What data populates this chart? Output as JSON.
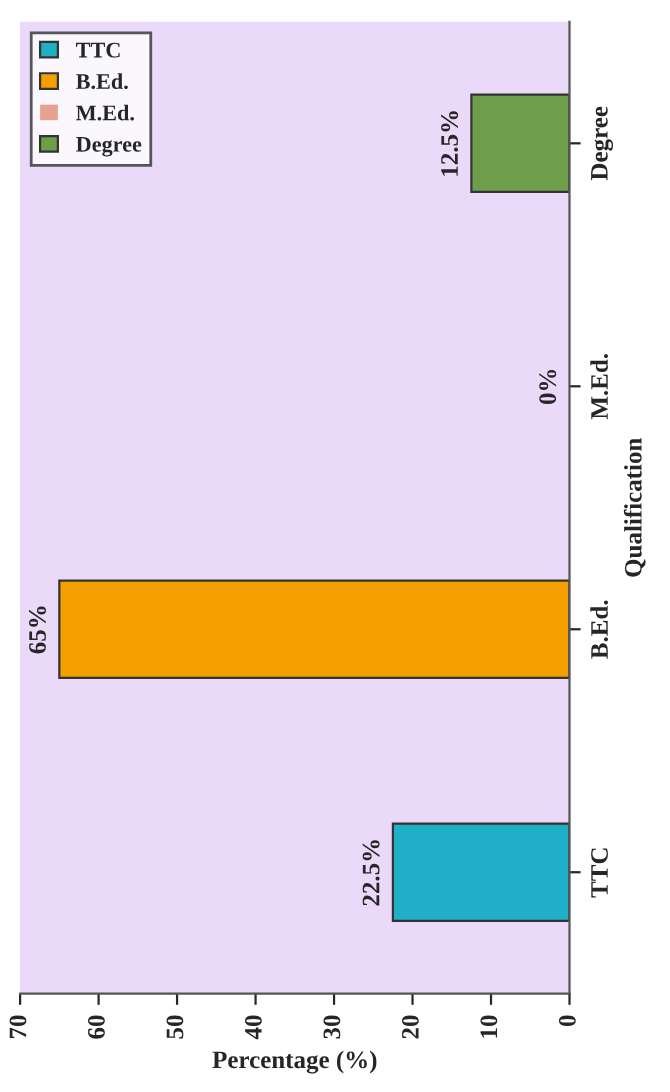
{
  "chart_data": {
    "type": "bar",
    "orientation": "horizontal",
    "xlabel": "Percentage (%)",
    "ylabel": "Qualification",
    "categories": [
      "Degree",
      "M.Ed.",
      "B.Ed.",
      "TTC"
    ],
    "series": [
      {
        "name": "TTC",
        "color": "#1fb0c8",
        "values": [
          null,
          null,
          null,
          22.5
        ],
        "value_labels": [
          null,
          null,
          null,
          "22.5%"
        ]
      },
      {
        "name": "B.Ed.",
        "color": "#f5a000",
        "values": [
          null,
          null,
          65,
          null
        ],
        "value_labels": [
          null,
          null,
          "65%",
          null
        ]
      },
      {
        "name": "M.Ed.",
        "color": "#e8a090",
        "values": [
          null,
          0,
          null,
          null
        ],
        "value_labels": [
          null,
          "0%",
          null,
          null
        ]
      },
      {
        "name": "Degree",
        "color": "#6e9e4a",
        "values": [
          12.5,
          null,
          null,
          null
        ],
        "value_labels": [
          "12.5%",
          null,
          null,
          null
        ]
      }
    ],
    "xlim": [
      70,
      0
    ],
    "xticks": [
      0,
      10,
      20,
      30,
      40,
      50,
      60,
      70
    ],
    "legend": "top left",
    "grid": false
  }
}
